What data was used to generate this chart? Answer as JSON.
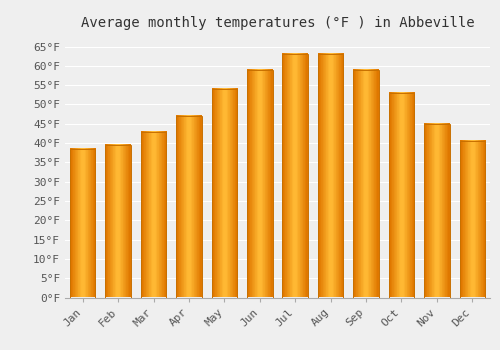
{
  "months": [
    "Jan",
    "Feb",
    "Mar",
    "Apr",
    "May",
    "Jun",
    "Jul",
    "Aug",
    "Sep",
    "Oct",
    "Nov",
    "Dec"
  ],
  "values": [
    38.5,
    39.5,
    43.0,
    47.0,
    54.0,
    59.0,
    63.0,
    63.0,
    59.0,
    53.0,
    45.0,
    40.5
  ],
  "bar_color_center": "#FFB833",
  "bar_color_edge": "#E07800",
  "title": "Average monthly temperatures (°F ) in Abbeville",
  "ylim": [
    0,
    68
  ],
  "yticks": [
    0,
    5,
    10,
    15,
    20,
    25,
    30,
    35,
    40,
    45,
    50,
    55,
    60,
    65
  ],
  "ytick_labels": [
    "0°F",
    "5°F",
    "10°F",
    "15°F",
    "20°F",
    "25°F",
    "30°F",
    "35°F",
    "40°F",
    "45°F",
    "50°F",
    "55°F",
    "60°F",
    "65°F"
  ],
  "background_color": "#efefef",
  "grid_color": "#ffffff",
  "title_fontsize": 10,
  "tick_fontsize": 8
}
